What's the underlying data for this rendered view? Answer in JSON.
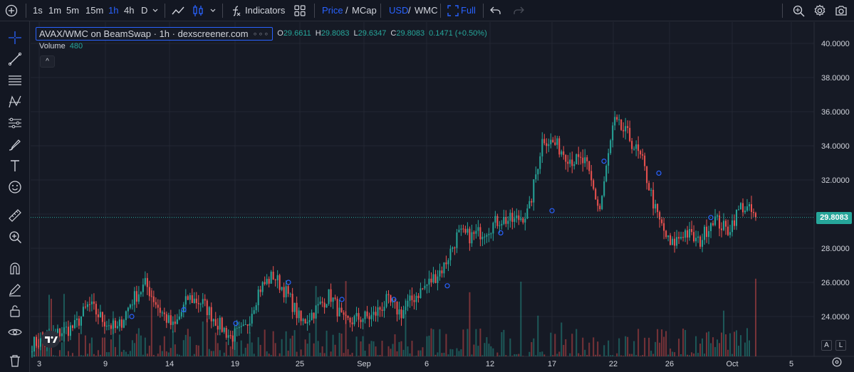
{
  "toolbar": {
    "intervals": [
      "1s",
      "1m",
      "5m",
      "15m",
      "1h",
      "4h",
      "D"
    ],
    "active_interval": "1h",
    "indicators_label": "Indicators",
    "price_label": "Price",
    "slash1": "/",
    "mcap_label": "MCap",
    "usd_label": "USD",
    "slash2": "/",
    "wmc_label": "WMC",
    "full_label": "Full"
  },
  "legend": {
    "symbol": "AVAX/WMC on BeamSwap · 1h · dexscreener.com",
    "dots": "∘∘∘",
    "o_label": "O",
    "o_value": "29.6611",
    "h_label": "H",
    "h_value": "29.8083",
    "l_label": "L",
    "l_value": "29.6347",
    "c_label": "C",
    "c_value": "29.8083",
    "change": "0.1471 (+0.50%)",
    "volume_label": "Volume",
    "volume_value": "480",
    "collapse": "^"
  },
  "price_axis": {
    "ticks": [
      "40.0000",
      "38.0000",
      "36.0000",
      "34.0000",
      "32.0000",
      "28.0000",
      "26.0000",
      "24.0000"
    ],
    "last_price": "29.8083",
    "auto_label": "A",
    "log_label": "L"
  },
  "time_axis": {
    "ticks": [
      "3",
      "9",
      "14",
      "19",
      "25",
      "Sep",
      "6",
      "12",
      "17",
      "22",
      "26",
      "Oct",
      "5"
    ]
  },
  "colors": {
    "up": "#26a69a",
    "down": "#ef5350",
    "accent": "#2962ff",
    "bg": "#161a25"
  },
  "chart_data": {
    "type": "candlestick",
    "pair": "AVAX/WMC",
    "ylim": [
      22.5,
      40.5
    ],
    "last_close": 29.8083,
    "anchors": [
      [
        0,
        22.4
      ],
      [
        2,
        22.6
      ],
      [
        4,
        23.1
      ],
      [
        6,
        23.4
      ],
      [
        8,
        24.7
      ],
      [
        10,
        23.8
      ],
      [
        12,
        23.2
      ],
      [
        14,
        24.9
      ],
      [
        16,
        25.9
      ],
      [
        18,
        24.4
      ],
      [
        20,
        23.3
      ],
      [
        22,
        25.1
      ],
      [
        24,
        24.8
      ],
      [
        26,
        23.7
      ],
      [
        28,
        22.8
      ],
      [
        30,
        23.2
      ],
      [
        32,
        25.6
      ],
      [
        34,
        26.4
      ],
      [
        36,
        25.3
      ],
      [
        38,
        23.6
      ],
      [
        40,
        24.4
      ],
      [
        42,
        25.3
      ],
      [
        44,
        23.6
      ],
      [
        46,
        23.9
      ],
      [
        48,
        24.0
      ],
      [
        50,
        24.9
      ],
      [
        52,
        24.2
      ],
      [
        54,
        25.2
      ],
      [
        56,
        26.0
      ],
      [
        58,
        26.9
      ],
      [
        60,
        28.8
      ],
      [
        62,
        28.7
      ],
      [
        64,
        29.1
      ],
      [
        66,
        29.7
      ],
      [
        68,
        29.6
      ],
      [
        70,
        30.1
      ],
      [
        72,
        34.5
      ],
      [
        74,
        34.0
      ],
      [
        76,
        33.2
      ],
      [
        78,
        33.0
      ],
      [
        80,
        30.2
      ],
      [
        82,
        35.4
      ],
      [
        84,
        34.6
      ],
      [
        86,
        33.1
      ],
      [
        88,
        30.0
      ],
      [
        90,
        28.1
      ],
      [
        92,
        29.0
      ],
      [
        94,
        28.3
      ],
      [
        96,
        29.8
      ],
      [
        98,
        29.0
      ],
      [
        100,
        30.5
      ],
      [
        102,
        29.9
      ]
    ],
    "x_ticks": [
      "3",
      "9",
      "14",
      "19",
      "25",
      "Sep",
      "6",
      "12",
      "17",
      "22",
      "26",
      "Oct",
      "5"
    ]
  }
}
